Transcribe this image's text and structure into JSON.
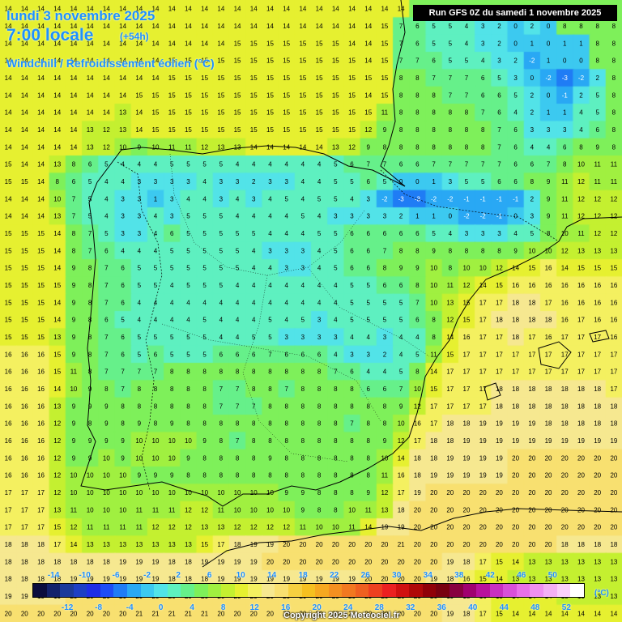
{
  "header": {
    "date": "lundi 3 novembre 2025",
    "time": "7:00 locale",
    "lead": "(+54h)",
    "parameter": "Windchill / Refroidissement éolien (°C)"
  },
  "run_info": "Run GFS 0Z du samedi 1 novembre 2025",
  "legend": {
    "top_labels": [
      "-14",
      "-10",
      "-6",
      "-2",
      "2",
      "6",
      "10",
      "14",
      "18",
      "22",
      "26",
      "30",
      "34",
      "38",
      "42",
      "46",
      "50"
    ],
    "bottom_labels": [
      "-12",
      "-8",
      "-4",
      "0",
      "4",
      "8",
      "12",
      "16",
      "20",
      "24",
      "28",
      "32",
      "36",
      "40",
      "44",
      "48",
      "52"
    ],
    "unit": "(°C)",
    "colors": [
      "#0b0d3d",
      "#13226b",
      "#1b3a9a",
      "#1d3fc4",
      "#1e2ee5",
      "#1e4df5",
      "#1f7cf5",
      "#29a8f4",
      "#3cc9f0",
      "#52e3e8",
      "#5ef0c0",
      "#66f08a",
      "#7ef05a",
      "#a0f040",
      "#c4f030",
      "#e6f030",
      "#f4f060",
      "#f6e890",
      "#f8e070",
      "#f6d040",
      "#f6c020",
      "#f6a820",
      "#f49020",
      "#f27820",
      "#ef6020",
      "#ee4020",
      "#ec2020",
      "#d01010",
      "#b00808",
      "#900008",
      "#780010",
      "#880040",
      "#a00070",
      "#b8109c",
      "#c830c0",
      "#d850d8",
      "#e870e8",
      "#f090f0",
      "#f4b0f4",
      "#fad0fa",
      "#ffffff"
    ]
  },
  "chart_data": {
    "type": "heatmap",
    "title": "Windchill / Refroidissement éolien (°C)",
    "valid_time": "lundi 3 novembre 2025 7:00 locale (+54h)",
    "model_run": "Run GFS 0Z du samedi 1 novembre 2025",
    "unit": "°C",
    "grid_columns": 38,
    "grid_rows": 36,
    "rows": [
      [
        14,
        14,
        14,
        14,
        14,
        14,
        14,
        14,
        14,
        14,
        14,
        14,
        14,
        14,
        14,
        14,
        14,
        14,
        14,
        14,
        14,
        14,
        14,
        14,
        14,
        9,
        8,
        8,
        8,
        8,
        8,
        8,
        8,
        8,
        8,
        8,
        8,
        8
      ],
      [
        14,
        14,
        14,
        14,
        14,
        14,
        14,
        14,
        14,
        14,
        14,
        14,
        14,
        14,
        14,
        14,
        14,
        14,
        14,
        14,
        14,
        14,
        14,
        15,
        7,
        6,
        5,
        5,
        4,
        3,
        2,
        0,
        2,
        0,
        8,
        8,
        8,
        8
      ],
      [
        14,
        14,
        14,
        14,
        14,
        14,
        14,
        14,
        14,
        14,
        14,
        14,
        14,
        14,
        15,
        15,
        15,
        15,
        15,
        15,
        15,
        14,
        14,
        15,
        7,
        6,
        5,
        5,
        4,
        3,
        2,
        0,
        1,
        0,
        1,
        1,
        8,
        8
      ],
      [
        14,
        14,
        14,
        14,
        14,
        14,
        14,
        14,
        14,
        14,
        15,
        15,
        15,
        15,
        15,
        15,
        15,
        15,
        15,
        15,
        15,
        15,
        14,
        15,
        7,
        7,
        6,
        5,
        5,
        4,
        3,
        2,
        -2,
        1,
        0,
        0,
        8,
        8
      ],
      [
        14,
        14,
        14,
        14,
        14,
        14,
        14,
        14,
        14,
        14,
        15,
        15,
        15,
        15,
        15,
        15,
        15,
        15,
        15,
        15,
        15,
        15,
        15,
        15,
        8,
        8,
        7,
        7,
        7,
        6,
        5,
        3,
        0,
        -2,
        -3,
        -2,
        2,
        8
      ],
      [
        14,
        14,
        14,
        14,
        14,
        14,
        14,
        14,
        15,
        15,
        15,
        15,
        15,
        15,
        15,
        15,
        15,
        15,
        15,
        15,
        15,
        15,
        14,
        15,
        8,
        8,
        8,
        7,
        7,
        6,
        6,
        5,
        2,
        0,
        -1,
        2,
        5,
        8
      ],
      [
        14,
        14,
        14,
        14,
        14,
        14,
        14,
        13,
        14,
        15,
        15,
        15,
        15,
        15,
        15,
        15,
        15,
        15,
        15,
        15,
        15,
        15,
        15,
        11,
        8,
        8,
        8,
        8,
        8,
        7,
        6,
        4,
        2,
        1,
        1,
        4,
        5,
        8
      ],
      [
        14,
        14,
        14,
        14,
        14,
        13,
        12,
        13,
        14,
        15,
        15,
        15,
        15,
        15,
        15,
        15,
        15,
        15,
        15,
        15,
        15,
        15,
        12,
        9,
        8,
        8,
        8,
        8,
        8,
        8,
        7,
        6,
        3,
        3,
        3,
        4,
        6,
        8
      ],
      [
        14,
        14,
        14,
        14,
        14,
        13,
        12,
        10,
        9,
        10,
        11,
        11,
        12,
        13,
        13,
        14,
        14,
        14,
        14,
        14,
        13,
        12,
        9,
        8,
        8,
        8,
        8,
        8,
        8,
        8,
        7,
        6,
        4,
        4,
        6,
        8,
        9,
        8
      ],
      [
        15,
        14,
        14,
        13,
        8,
        6,
        5,
        4,
        4,
        4,
        5,
        5,
        5,
        5,
        4,
        4,
        4,
        4,
        4,
        4,
        5,
        6,
        7,
        7,
        6,
        6,
        7,
        7,
        7,
        7,
        7,
        6,
        6,
        7,
        8,
        10,
        11,
        11
      ],
      [
        15,
        15,
        14,
        8,
        6,
        5,
        4,
        4,
        3,
        3,
        3,
        3,
        4,
        3,
        3,
        2,
        3,
        3,
        4,
        4,
        5,
        5,
        6,
        5,
        0,
        0,
        1,
        3,
        5,
        5,
        6,
        6,
        8,
        9,
        11,
        12,
        11,
        11
      ],
      [
        14,
        14,
        14,
        10,
        7,
        5,
        4,
        3,
        3,
        1,
        3,
        4,
        4,
        3,
        4,
        3,
        4,
        5,
        4,
        5,
        5,
        4,
        3,
        -2,
        -3,
        -3,
        -2,
        -2,
        -1,
        -1,
        -1,
        -1,
        2,
        9,
        11,
        12,
        12,
        12
      ],
      [
        14,
        14,
        14,
        13,
        7,
        5,
        4,
        3,
        3,
        4,
        3,
        5,
        5,
        5,
        4,
        4,
        4,
        4,
        5,
        4,
        3,
        3,
        3,
        3,
        2,
        1,
        1,
        0,
        -2,
        -2,
        -1,
        0,
        3,
        9,
        11,
        12,
        12,
        12
      ],
      [
        15,
        15,
        15,
        14,
        8,
        7,
        5,
        3,
        3,
        4,
        6,
        5,
        5,
        5,
        5,
        5,
        4,
        4,
        4,
        5,
        5,
        6,
        6,
        6,
        6,
        6,
        5,
        4,
        3,
        3,
        3,
        4,
        5,
        8,
        10,
        11,
        12,
        12
      ],
      [
        15,
        15,
        15,
        14,
        8,
        7,
        6,
        4,
        4,
        4,
        5,
        5,
        5,
        5,
        5,
        4,
        3,
        3,
        3,
        4,
        5,
        6,
        6,
        7,
        8,
        8,
        9,
        8,
        8,
        8,
        8,
        9,
        10,
        10,
        12,
        13,
        13,
        13
      ],
      [
        15,
        15,
        15,
        14,
        9,
        8,
        7,
        6,
        5,
        5,
        5,
        5,
        5,
        5,
        5,
        4,
        4,
        3,
        3,
        4,
        5,
        6,
        6,
        8,
        9,
        9,
        10,
        8,
        10,
        10,
        12,
        14,
        15,
        16,
        14,
        15,
        15,
        15
      ],
      [
        15,
        15,
        15,
        15,
        9,
        8,
        7,
        6,
        5,
        5,
        4,
        5,
        5,
        5,
        4,
        4,
        4,
        4,
        4,
        4,
        4,
        5,
        5,
        6,
        6,
        8,
        10,
        11,
        12,
        14,
        15,
        16,
        16,
        16,
        16,
        16,
        16,
        16
      ],
      [
        15,
        15,
        15,
        14,
        9,
        8,
        7,
        6,
        4,
        4,
        4,
        4,
        4,
        4,
        4,
        4,
        4,
        4,
        4,
        4,
        4,
        5,
        5,
        5,
        5,
        7,
        10,
        13,
        15,
        17,
        17,
        18,
        18,
        17,
        16,
        16,
        16,
        16
      ],
      [
        15,
        15,
        15,
        14,
        9,
        8,
        6,
        5,
        4,
        4,
        4,
        4,
        5,
        4,
        4,
        4,
        5,
        4,
        5,
        3,
        4,
        5,
        5,
        5,
        5,
        6,
        8,
        12,
        15,
        17,
        18,
        18,
        18,
        18,
        16,
        17,
        16,
        16
      ],
      [
        15,
        15,
        15,
        13,
        9,
        8,
        7,
        6,
        5,
        5,
        5,
        5,
        5,
        4,
        4,
        5,
        5,
        3,
        3,
        3,
        3,
        4,
        4,
        3,
        4,
        4,
        8,
        14,
        16,
        17,
        17,
        18,
        17,
        16,
        17,
        17,
        17,
        16
      ],
      [
        16,
        16,
        16,
        15,
        9,
        8,
        7,
        6,
        5,
        6,
        5,
        5,
        5,
        6,
        6,
        6,
        7,
        6,
        6,
        6,
        4,
        3,
        3,
        2,
        4,
        5,
        11,
        15,
        17,
        17,
        17,
        17,
        17,
        17,
        17,
        17,
        17,
        17
      ],
      [
        16,
        16,
        16,
        15,
        11,
        8,
        7,
        7,
        7,
        7,
        8,
        8,
        8,
        8,
        8,
        8,
        8,
        8,
        8,
        8,
        7,
        6,
        4,
        4,
        5,
        8,
        14,
        17,
        17,
        17,
        17,
        17,
        17,
        17,
        17,
        17,
        17,
        17
      ],
      [
        16,
        16,
        16,
        14,
        10,
        9,
        8,
        7,
        8,
        8,
        8,
        8,
        8,
        7,
        7,
        8,
        8,
        7,
        8,
        8,
        8,
        8,
        6,
        6,
        7,
        10,
        15,
        17,
        17,
        17,
        18,
        18,
        18,
        18,
        18,
        18,
        18,
        17
      ],
      [
        16,
        16,
        16,
        13,
        9,
        9,
        9,
        8,
        8,
        8,
        8,
        8,
        8,
        7,
        7,
        7,
        8,
        8,
        8,
        8,
        8,
        8,
        8,
        8,
        9,
        12,
        17,
        17,
        17,
        17,
        18,
        18,
        18,
        18,
        18,
        18,
        18,
        18
      ],
      [
        16,
        16,
        16,
        12,
        9,
        8,
        9,
        8,
        9,
        8,
        9,
        8,
        8,
        8,
        8,
        8,
        8,
        8,
        8,
        8,
        8,
        7,
        8,
        8,
        10,
        16,
        17,
        18,
        18,
        19,
        19,
        19,
        19,
        18,
        18,
        18,
        18,
        18
      ],
      [
        16,
        16,
        16,
        12,
        9,
        9,
        9,
        9,
        10,
        10,
        10,
        10,
        9,
        8,
        7,
        8,
        8,
        8,
        8,
        8,
        8,
        8,
        8,
        9,
        12,
        17,
        18,
        18,
        19,
        19,
        19,
        19,
        19,
        19,
        19,
        19,
        19,
        19
      ],
      [
        16,
        16,
        16,
        12,
        9,
        9,
        10,
        9,
        10,
        10,
        10,
        9,
        8,
        8,
        8,
        8,
        9,
        8,
        8,
        8,
        8,
        8,
        8,
        10,
        14,
        18,
        18,
        19,
        19,
        19,
        19,
        20,
        20,
        20,
        20,
        20,
        20,
        20
      ],
      [
        16,
        16,
        16,
        12,
        10,
        10,
        10,
        10,
        9,
        9,
        9,
        8,
        8,
        8,
        8,
        8,
        8,
        8,
        8,
        8,
        8,
        8,
        8,
        11,
        16,
        18,
        19,
        19,
        19,
        19,
        19,
        20,
        20,
        20,
        20,
        20,
        20,
        20
      ],
      [
        17,
        17,
        17,
        12,
        10,
        10,
        10,
        10,
        10,
        10,
        10,
        10,
        10,
        10,
        10,
        10,
        10,
        9,
        9,
        8,
        8,
        8,
        9,
        12,
        17,
        19,
        20,
        20,
        20,
        20,
        20,
        20,
        20,
        20,
        20,
        20,
        20,
        20
      ],
      [
        17,
        17,
        17,
        13,
        11,
        10,
        10,
        10,
        11,
        11,
        11,
        12,
        12,
        11,
        10,
        10,
        10,
        10,
        9,
        8,
        8,
        10,
        11,
        13,
        18,
        20,
        20,
        20,
        20,
        20,
        20,
        20,
        20,
        20,
        20,
        20,
        20,
        20
      ],
      [
        17,
        17,
        17,
        15,
        12,
        11,
        11,
        11,
        11,
        12,
        12,
        12,
        13,
        13,
        12,
        12,
        12,
        12,
        11,
        10,
        10,
        11,
        14,
        19,
        19,
        20,
        20,
        20,
        20,
        20,
        20,
        20,
        20,
        20,
        20,
        20,
        20,
        20
      ],
      [
        18,
        18,
        18,
        17,
        14,
        13,
        13,
        13,
        13,
        13,
        13,
        13,
        15,
        17,
        18,
        19,
        19,
        20,
        20,
        20,
        20,
        20,
        20,
        20,
        21,
        20,
        20,
        20,
        20,
        20,
        20,
        20,
        20,
        20,
        18,
        18,
        18,
        18
      ],
      [
        18,
        18,
        18,
        18,
        18,
        18,
        18,
        19,
        19,
        19,
        18,
        18,
        19,
        19,
        19,
        19,
        20,
        20,
        20,
        20,
        20,
        20,
        20,
        20,
        20,
        20,
        20,
        19,
        18,
        17,
        15,
        14,
        13,
        13,
        13,
        13,
        13,
        13
      ],
      [
        18,
        18,
        18,
        18,
        19,
        19,
        19,
        19,
        19,
        19,
        18,
        18,
        18,
        19,
        19,
        19,
        19,
        19,
        19,
        19,
        19,
        19,
        20,
        20,
        20,
        20,
        19,
        18,
        16,
        15,
        14,
        13,
        13,
        13,
        13,
        13,
        13,
        13
      ],
      [
        19,
        19,
        19,
        19,
        20,
        20,
        20,
        20,
        20,
        20,
        20,
        20,
        20,
        20,
        20,
        20,
        20,
        20,
        20,
        20,
        20,
        20,
        20,
        20,
        20,
        20,
        20,
        19,
        18,
        16,
        15,
        14,
        14,
        14,
        13,
        13,
        13,
        13
      ],
      [
        20,
        20,
        20,
        20,
        20,
        20,
        20,
        20,
        21,
        21,
        21,
        21,
        21,
        20,
        20,
        20,
        20,
        20,
        20,
        20,
        20,
        20,
        20,
        20,
        20,
        20,
        20,
        19,
        18,
        17,
        15,
        14,
        14,
        14,
        14,
        14,
        14,
        14
      ]
    ]
  },
  "copyright": "Copyright 2025 Meteociel.fr"
}
